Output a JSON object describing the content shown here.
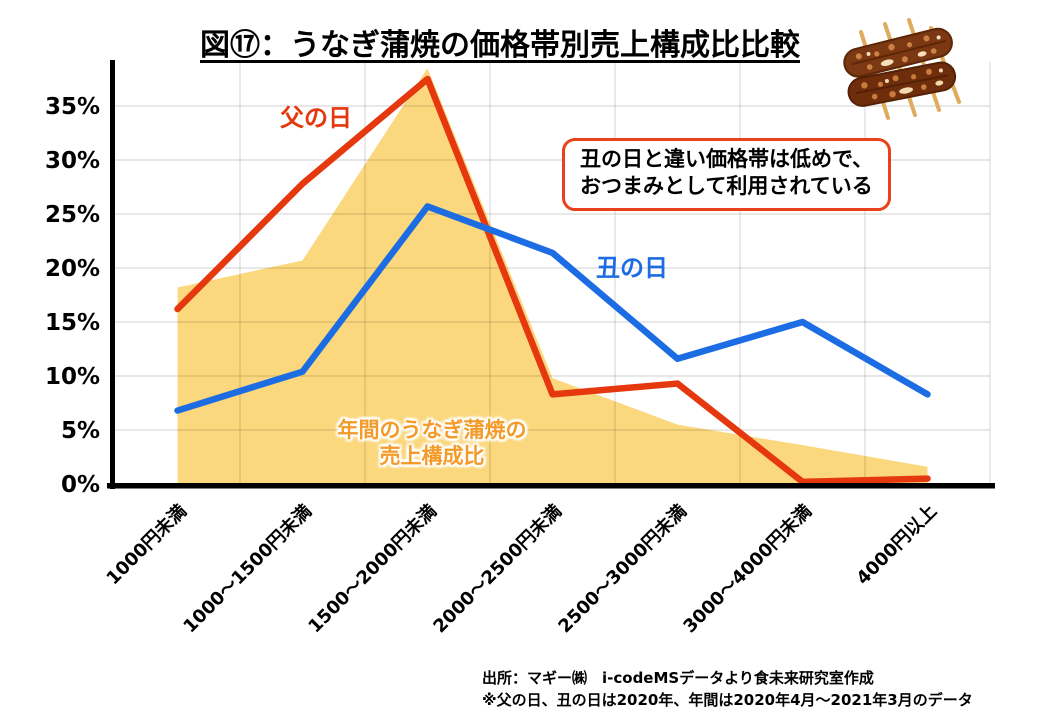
{
  "title": "図⑰：うなぎ蒲焼の価格帯別売上構成比比較",
  "labels": {
    "father": "父の日",
    "ushi": "丑の日",
    "annual_line1": "年間のうなぎ蒲焼の",
    "annual_line2": "売上構成比"
  },
  "annotation": {
    "line1": "丑の日と違い価格帯は低めで、",
    "line2": "おつまみとして利用されている"
  },
  "source": {
    "line1": "出所：マギー㈱　i-codeMSデータより食未来研究室作成",
    "line2": "※父の日、丑の日は2020年、年間は2020年4月～2021年3月のデータ"
  },
  "icons": {
    "eel_illustration": "eel-kabayaki-skewers"
  },
  "colors": {
    "father_line": "#E5380E",
    "ushi_line": "#1C6CE3",
    "annual_area": "#FBD87D",
    "annual_label_text": "#F39A28",
    "callout_border": "#E8421C",
    "axis": "#000000",
    "gridline": "rgba(0,0,0,0.12)"
  },
  "chart_data": {
    "type": "line",
    "title": "図⑰：うなぎ蒲焼の価格帯別売上構成比比較",
    "categories": [
      "1000円未満",
      "1000～1500円未満",
      "1500～2000円未満",
      "2000～2500円未満",
      "2500～3000円未満",
      "3000～4000円未満",
      "4000円以上"
    ],
    "series": [
      {
        "name": "父の日",
        "kind": "line",
        "color": "#E5380E",
        "values": [
          16.2,
          27.8,
          37.5,
          8.3,
          9.3,
          0.2,
          0.5
        ]
      },
      {
        "name": "丑の日",
        "kind": "line",
        "color": "#1C6CE3",
        "values": [
          6.8,
          10.4,
          25.7,
          21.4,
          11.6,
          15.0,
          8.3
        ]
      },
      {
        "name": "年間のうなぎ蒲焼の売上構成比",
        "kind": "area",
        "color": "#FBD87D",
        "values": [
          18.2,
          20.7,
          38.5,
          9.8,
          5.5,
          3.6,
          1.6
        ]
      }
    ],
    "yticks": [
      0,
      5,
      10,
      15,
      20,
      25,
      30,
      35
    ],
    "ytick_suffix": "%",
    "ylim": [
      0,
      39
    ],
    "xlabel": "",
    "ylabel": "",
    "grid": true,
    "legend_position": "inline-labels",
    "x_labels_rotation_deg": -45
  }
}
